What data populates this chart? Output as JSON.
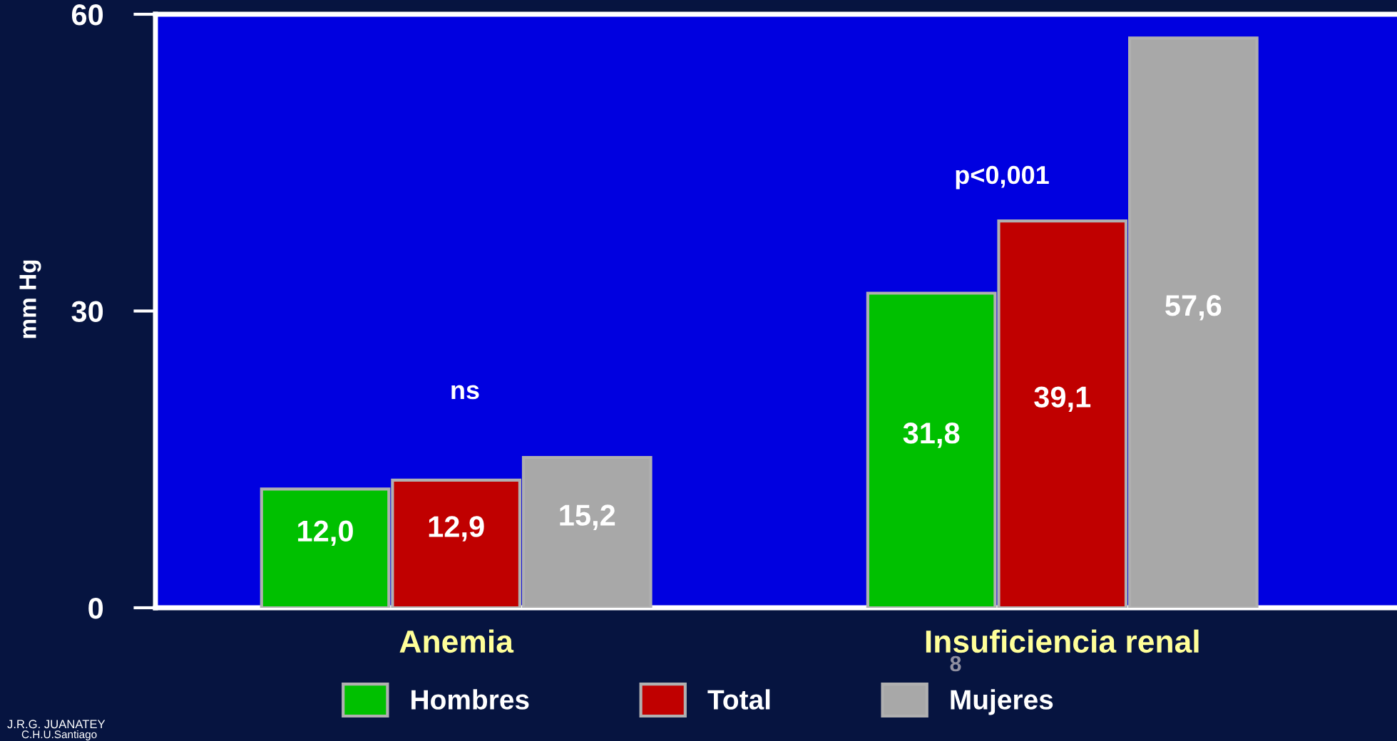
{
  "chart_data": {
    "type": "bar",
    "ylabel": "mm Hg",
    "categories": [
      "Anemia",
      "Insuficiencia renal"
    ],
    "series": [
      {
        "name": "Hombres",
        "color": "#00c000",
        "values": [
          12.0,
          31.8
        ],
        "value_labels": [
          "12,0",
          "31,8"
        ]
      },
      {
        "name": "Total",
        "color": "#c00000",
        "values": [
          12.9,
          39.1
        ],
        "value_labels": [
          "12,9",
          "39,1"
        ]
      },
      {
        "name": "Mujeres",
        "color": "#a8a8a8",
        "values": [
          15.2,
          57.6
        ],
        "value_labels": [
          "15,2",
          "57,6"
        ]
      }
    ],
    "ylim": [
      0,
      60
    ],
    "yticks": [
      0,
      30,
      60
    ],
    "grid": false,
    "legend": "bottom",
    "annotations": [
      "ns",
      "p<0,001",
      "J.R.G. JUANATEY",
      "C.H.U.Santiago",
      "8"
    ]
  }
}
